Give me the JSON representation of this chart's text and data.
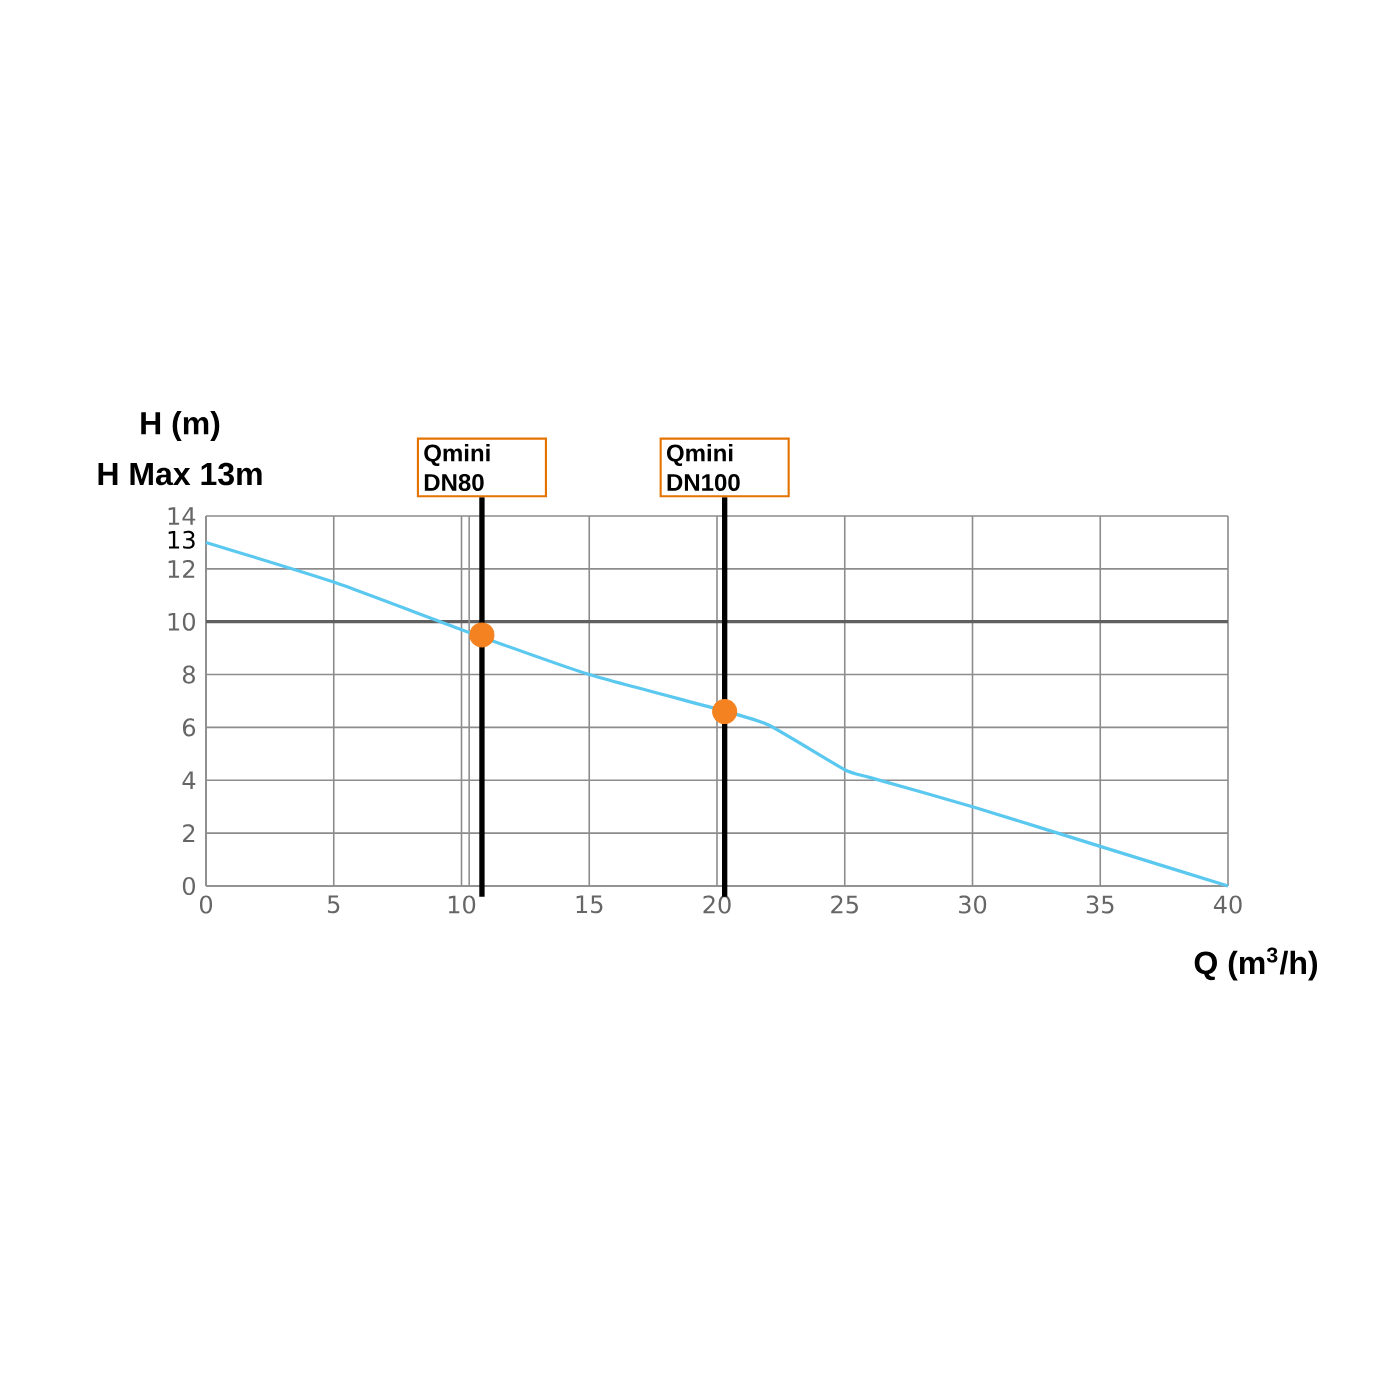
{
  "chart_data": {
    "type": "line",
    "xlabel": "Q (m$^{3}$/h)",
    "ylabel": "H (m)",
    "annotations": [
      "H Max 13m"
    ],
    "xlim": [
      0,
      40
    ],
    "ylim": [
      0,
      14
    ],
    "xticks": [
      0,
      5,
      10,
      15,
      20,
      25,
      30,
      35,
      40
    ],
    "yticks": [
      0,
      2,
      4,
      6,
      8,
      10,
      12,
      {
        "value": 13,
        "label": "13"
      },
      14
    ],
    "grid": true,
    "series": [
      {
        "color": "#5bc8f0",
        "marker": "none",
        "x": [
          0,
          5,
          10,
          15,
          20,
          22,
          25,
          26,
          30,
          35,
          40
        ],
        "values": [
          13,
          11.5,
          9.7,
          8,
          6.7,
          6.1,
          4.4,
          4.1,
          3,
          1.5,
          0
        ]
      },
      {
        "type": "scatter",
        "marker": "circle",
        "color": "#f58220",
        "x": [
          10.8,
          20.3
        ],
        "values": [
          9.5,
          6.6
        ]
      }
    ],
    "ref_lines": [
      {
        "axis": "y",
        "value": 10,
        "color": "#606060"
      },
      {
        "axis": "x",
        "value": 10.3,
        "color": "#909090"
      },
      {
        "axis": "x",
        "value": 10.8,
        "label": "Qmini DN80",
        "color": "#000000"
      },
      {
        "axis": "x",
        "value": 20.3,
        "label": "Qmini DN100",
        "color": "#000000"
      }
    ]
  }
}
